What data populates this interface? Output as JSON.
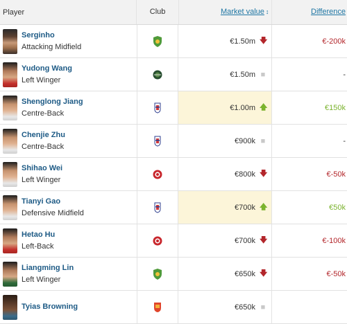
{
  "header": {
    "player": "Player",
    "club": "Club",
    "market_value": "Market value",
    "difference": "Difference"
  },
  "colors": {
    "link": "#1d75a3",
    "name": "#1d5a85",
    "down": "#b3262b",
    "up": "#7bb32e",
    "highlight": "#fcf5d9"
  },
  "rows": [
    {
      "name": "Serginho",
      "position": "Attacking Midfield",
      "club_icon": "green-crest-icon",
      "value": "€1.50m",
      "trend": "down",
      "difference": "€-200k",
      "highlight": false
    },
    {
      "name": "Yudong Wang",
      "position": "Left Winger",
      "club_icon": "dark-green-crest-icon",
      "value": "€1.50m",
      "trend": "none",
      "difference": "-",
      "highlight": false
    },
    {
      "name": "Shenglong Jiang",
      "position": "Centre-Back",
      "club_icon": "blue-crest-icon",
      "value": "€1.00m",
      "trend": "up",
      "difference": "€150k",
      "highlight": true
    },
    {
      "name": "Chenjie Zhu",
      "position": "Centre-Back",
      "club_icon": "blue-crest-icon",
      "value": "€900k",
      "trend": "none",
      "difference": "-",
      "highlight": false
    },
    {
      "name": "Shihao Wei",
      "position": "Left Winger",
      "club_icon": "red-crest-icon",
      "value": "€800k",
      "trend": "down",
      "difference": "€-50k",
      "highlight": false
    },
    {
      "name": "Tianyi Gao",
      "position": "Defensive Midfield",
      "club_icon": "blue-crest-icon",
      "value": "€700k",
      "trend": "up",
      "difference": "€50k",
      "highlight": true
    },
    {
      "name": "Hetao Hu",
      "position": "Left-Back",
      "club_icon": "red-crest-icon",
      "value": "€700k",
      "trend": "down",
      "difference": "€-100k",
      "highlight": false
    },
    {
      "name": "Liangming Lin",
      "position": "Left Winger",
      "club_icon": "green-crest-icon",
      "value": "€650k",
      "trend": "down",
      "difference": "€-50k",
      "highlight": false
    },
    {
      "name": "Tyias Browning",
      "position": "",
      "club_icon": "orange-crest-icon",
      "value": "€650k",
      "trend": "none",
      "difference": "",
      "highlight": false
    }
  ]
}
